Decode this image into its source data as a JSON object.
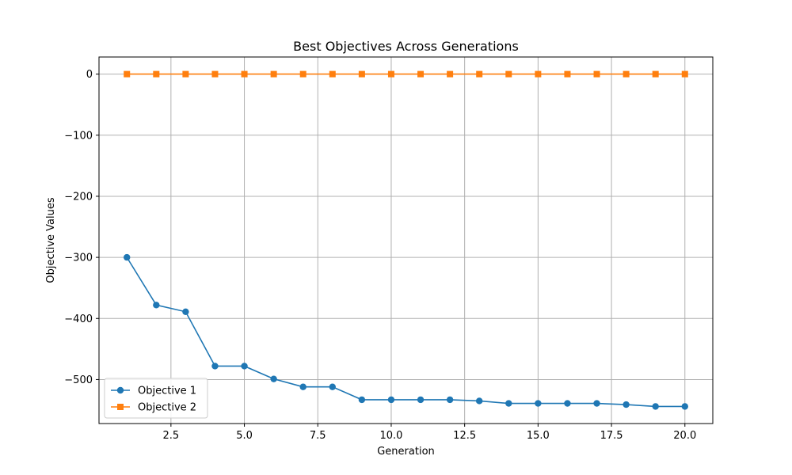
{
  "chart_data": {
    "type": "line",
    "title": "Best Objectives Across Generations",
    "xlabel": "Generation",
    "ylabel": "Objective Values",
    "xlim": [
      0.05,
      20.95
    ],
    "ylim": [
      -572,
      28
    ],
    "xticks": [
      2.5,
      5.0,
      7.5,
      10.0,
      12.5,
      15.0,
      17.5,
      20.0
    ],
    "xtick_labels": [
      "2.5",
      "5.0",
      "7.5",
      "10.0",
      "12.5",
      "15.0",
      "17.5",
      "20.0"
    ],
    "yticks": [
      0,
      -100,
      -200,
      -300,
      -400,
      -500
    ],
    "ytick_labels": [
      "0",
      "−100",
      "−200",
      "−300",
      "−400",
      "−500"
    ],
    "grid": true,
    "legend_position": "lower-left",
    "x": [
      1,
      2,
      3,
      4,
      5,
      6,
      7,
      8,
      9,
      10,
      11,
      12,
      13,
      14,
      15,
      16,
      17,
      18,
      19,
      20
    ],
    "series": [
      {
        "name": "Objective 1",
        "color": "#1f77b4",
        "marker": "circle",
        "values": [
          -300,
          -378,
          -389,
          -478,
          -478,
          -499,
          -512,
          -512,
          -533,
          -533,
          -533,
          -533,
          -535,
          -539,
          -539,
          -539,
          -539,
          -541,
          -544,
          -544
        ]
      },
      {
        "name": "Objective 2",
        "color": "#ff7f0e",
        "marker": "square",
        "values": [
          0,
          0,
          0,
          0,
          0,
          0,
          0,
          0,
          0,
          0,
          0,
          0,
          0,
          0,
          0,
          0,
          0,
          0,
          0,
          0
        ]
      }
    ]
  }
}
